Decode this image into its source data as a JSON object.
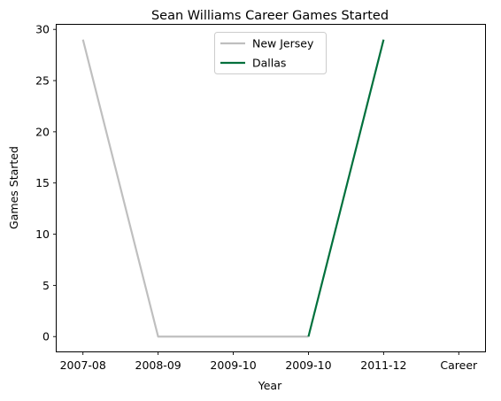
{
  "chart_data": {
    "type": "line",
    "title": "Sean Williams  Career Games Started",
    "xlabel": "Year",
    "ylabel": "Games Started",
    "categories": [
      "2007-08",
      "2008-09",
      "2009-10",
      "2009-10",
      "2011-12",
      "Career"
    ],
    "ylim": [
      -1.45,
      30.45
    ],
    "yticks": [
      0,
      5,
      10,
      15,
      20,
      25,
      30
    ],
    "grid": false,
    "legend_position": "top-center",
    "series": [
      {
        "name": "New Jersey",
        "color": "#BFBFBF",
        "x": [
          0,
          1,
          2,
          3,
          3
        ],
        "values": [
          29,
          0,
          0,
          0,
          0
        ]
      },
      {
        "name": "Dallas",
        "color": "#00703C",
        "x": [
          3,
          4
        ],
        "values": [
          0,
          29
        ]
      }
    ]
  }
}
